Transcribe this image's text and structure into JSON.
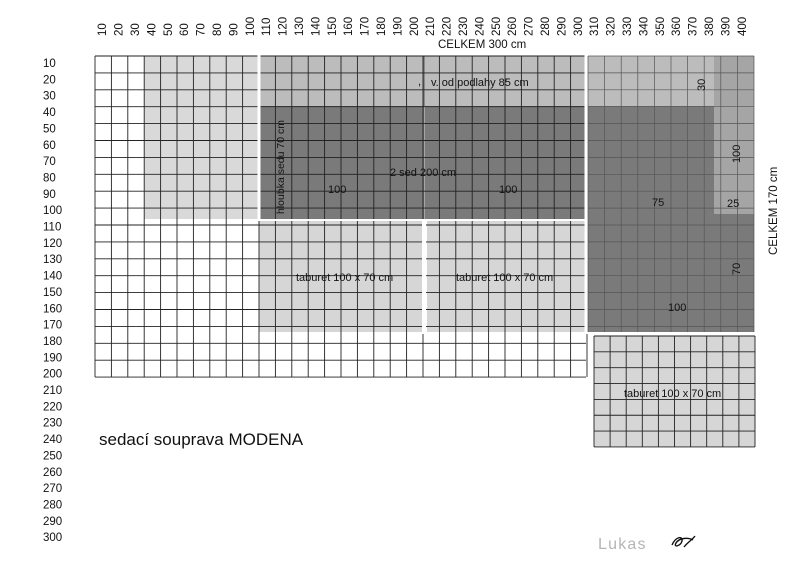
{
  "scale": {
    "x_ticks": [
      10,
      20,
      30,
      40,
      50,
      60,
      70,
      80,
      90,
      100,
      110,
      120,
      130,
      140,
      150,
      160,
      170,
      180,
      190,
      200,
      210,
      220,
      230,
      240,
      250,
      260,
      270,
      280,
      290,
      300,
      310,
      320,
      330,
      340,
      350,
      360,
      370,
      380,
      390,
      400
    ],
    "y_ticks": [
      10,
      20,
      30,
      40,
      50,
      60,
      70,
      80,
      90,
      100,
      110,
      120,
      130,
      140,
      150,
      160,
      170,
      180,
      190,
      200,
      210,
      220,
      230,
      240,
      250,
      260,
      270,
      280,
      290,
      300
    ]
  },
  "dimensions": {
    "total_width_label": "CELKEM  300 cm",
    "total_height_label": "CELKEM  170 cm"
  },
  "colors": {
    "back_light": "#bdbdbd",
    "seat_dark": "#7b7b7b",
    "taburet": "#d7d7d7",
    "side_back": "#a6a6a6",
    "grid": "#222222"
  },
  "pieces": {
    "back_label": "v. od podlahy 85 cm",
    "back_mark": ",",
    "seat_depth_label": "hloubka sedu 70 cm",
    "seat_pair_label": "2 sed  200 cm",
    "seat_left_width": "100",
    "seat_right_width": "100",
    "corner_width": "75",
    "corner_bottom": "100",
    "corner_back_30": "30",
    "corner_back_100": "100",
    "corner_back_25": "25",
    "corner_70": "70",
    "taburet_left": "taburet 100 x 70 cm",
    "taburet_middle": "taburet 100 x 70 cm",
    "taburet_right": "taburet 100 x 70 cm"
  },
  "title": "sedací souprava MODENA",
  "signature": "Lukas"
}
